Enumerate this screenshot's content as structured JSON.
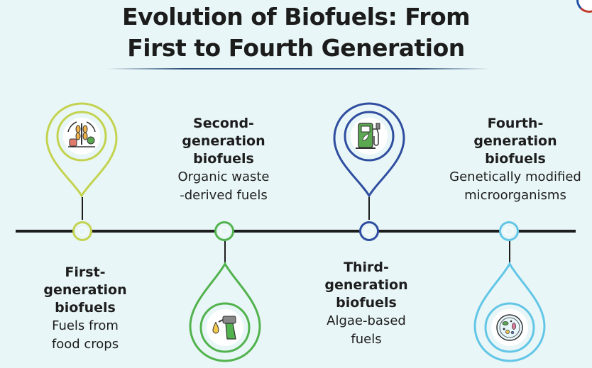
{
  "title": {
    "line1": "Evolution of Biofuels: From",
    "line2": "First to Fourth Generation"
  },
  "stages": [
    {
      "heading": [
        "First-",
        "generation",
        "biofuels"
      ],
      "description": [
        "Fuels from",
        "food crops"
      ],
      "icon": "crops-icon",
      "color": "#c3d34f"
    },
    {
      "heading": [
        "Second-",
        "generation",
        "biofuels"
      ],
      "description": [
        "Organic waste",
        "-derived fuels"
      ],
      "icon": "fuel-nozzle-icon",
      "color": "#52b34e"
    },
    {
      "heading": [
        "Third-",
        "generation",
        "biofuels"
      ],
      "description": [
        "Algae-based",
        "fuels"
      ],
      "icon": "fuel-pump-icon",
      "color": "#2f4ea0"
    },
    {
      "heading": [
        "Fourth-",
        "generation",
        "biofuels"
      ],
      "description": [
        "Genetically modified",
        "microorganisms"
      ],
      "icon": "microorganism-icon",
      "color": "#63c6e6"
    }
  ]
}
